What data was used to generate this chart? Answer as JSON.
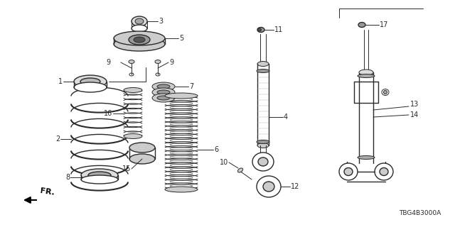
{
  "bg_color": "#ffffff",
  "line_color": "#2a2a2a",
  "part_number": "TBG4B3000A",
  "figsize": [
    6.4,
    3.2
  ],
  "dpi": 100
}
